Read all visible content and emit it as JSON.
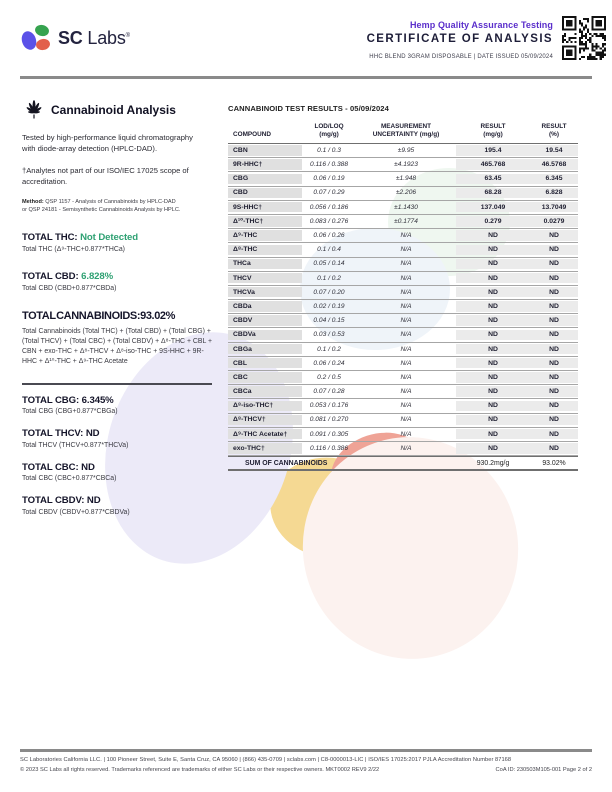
{
  "colors": {
    "accent_purple": "#5a2ecb",
    "value_green": "#2fa173",
    "logo_purple": "#5b51e8",
    "logo_green": "#36a34f",
    "logo_red": "#e2604c"
  },
  "header": {
    "brand_sc": "SC",
    "brand_labs": "Labs",
    "brand_reg": "®",
    "program": "Hemp Quality Assurance Testing",
    "title": "CERTIFICATE OF ANALYSIS",
    "sample_line": "HHC BLEND 3GRAM DISPOSABLE | DATE ISSUED 05/09/2024"
  },
  "left": {
    "section_title": "Cannabinoid Analysis",
    "intro": "Tested by high-performance liquid chromatography with diode-array detection (HPLC-DAD).",
    "scope_note": "†Analytes not part of our ISO/IEC 17025 scope of accreditation.",
    "method_label": "Method:",
    "method_text": " QSP 1157 - Analysis of Cannabinoids by HPLC-DAD or QSP 24181 - Semisynthetic Cannabinoids Analysis by HPLC.",
    "totals_primary": [
      {
        "label": "TOTAL THC:",
        "value": "Not Detected",
        "color": "#2fa173",
        "sub": "Total THC (Δ⁹-THC+0.877*THCa)"
      },
      {
        "label": "TOTAL CBD:",
        "value": "6.828%",
        "color": "#2fa173",
        "sub": "Total CBD (CBD+0.877*CBDa)"
      }
    ],
    "total_cannabinoids": {
      "label": "TOTAL CANNABINOIDS:",
      "value": "93.02%",
      "formula": "Total Cannabinoids (Total THC) + (Total CBD) + (Total CBG) + (Total THCV) + (Total CBC) + (Total CBDV) + Δ⁸-THC + CBL + CBN + exo-THC + Δ⁸-THCV + Δ⁸-iso-THC + 9S-HHC + 9R-HHC + Δ¹⁰-THC + Δ⁹-THC Acetate"
    },
    "totals_secondary": [
      {
        "label": "TOTAL CBG:",
        "value": "6.345%",
        "sub": "Total CBG (CBG+0.877*CBGa)"
      },
      {
        "label": "TOTAL THCV:",
        "value": "ND",
        "sub": "Total THCV (THCV+0.877*THCVa)"
      },
      {
        "label": "TOTAL CBC:",
        "value": "ND",
        "sub": "Total CBC (CBC+0.877*CBCa)"
      },
      {
        "label": "TOTAL CBDV:",
        "value": "ND",
        "sub": "Total CBDV (CBDV+0.877*CBDVa)"
      }
    ]
  },
  "results": {
    "title": "CANNABINOID TEST RESULTS - 05/09/2024",
    "columns": {
      "compound": "COMPOUND",
      "lod_loq_1": "LOD/LOQ",
      "lod_loq_2": "(mg/g)",
      "uncertainty_1": "MEASUREMENT",
      "uncertainty_2": "UNCERTAINTY (mg/g)",
      "result_mg_1": "RESULT",
      "result_mg_2": "(mg/g)",
      "result_pct_1": "RESULT",
      "result_pct_2": "(%)"
    },
    "rows": [
      {
        "compound": "CBN",
        "lod_loq": "0.1 / 0.3",
        "uncertainty": "±9.95",
        "result_mg": "195.4",
        "result_pct": "19.54"
      },
      {
        "compound": "9R-HHC†",
        "lod_loq": "0.116 / 0.388",
        "uncertainty": "±4.1923",
        "result_mg": "465.768",
        "result_pct": "46.5768"
      },
      {
        "compound": "CBG",
        "lod_loq": "0.06 / 0.19",
        "uncertainty": "±1.948",
        "result_mg": "63.45",
        "result_pct": "6.345"
      },
      {
        "compound": "CBD",
        "lod_loq": "0.07 / 0.29",
        "uncertainty": "±2.206",
        "result_mg": "68.28",
        "result_pct": "6.828"
      },
      {
        "compound": "9S-HHC†",
        "lod_loq": "0.056 / 0.186",
        "uncertainty": "±1.1430",
        "result_mg": "137.049",
        "result_pct": "13.7049"
      },
      {
        "compound": "Δ¹⁰-THC†",
        "lod_loq": "0.083 / 0.276",
        "uncertainty": "±0.1774",
        "result_mg": "0.279",
        "result_pct": "0.0279"
      },
      {
        "compound": "Δ⁹-THC",
        "lod_loq": "0.06 / 0.26",
        "uncertainty": "N/A",
        "result_mg": "ND",
        "result_pct": "ND"
      },
      {
        "compound": "Δ⁸-THC",
        "lod_loq": "0.1 / 0.4",
        "uncertainty": "N/A",
        "result_mg": "ND",
        "result_pct": "ND"
      },
      {
        "compound": "THCa",
        "lod_loq": "0.05 / 0.14",
        "uncertainty": "N/A",
        "result_mg": "ND",
        "result_pct": "ND"
      },
      {
        "compound": "THCV",
        "lod_loq": "0.1 / 0.2",
        "uncertainty": "N/A",
        "result_mg": "ND",
        "result_pct": "ND"
      },
      {
        "compound": "THCVa",
        "lod_loq": "0.07 / 0.20",
        "uncertainty": "N/A",
        "result_mg": "ND",
        "result_pct": "ND"
      },
      {
        "compound": "CBDa",
        "lod_loq": "0.02 / 0.19",
        "uncertainty": "N/A",
        "result_mg": "ND",
        "result_pct": "ND"
      },
      {
        "compound": "CBDV",
        "lod_loq": "0.04 / 0.15",
        "uncertainty": "N/A",
        "result_mg": "ND",
        "result_pct": "ND"
      },
      {
        "compound": "CBDVa",
        "lod_loq": "0.03 / 0.53",
        "uncertainty": "N/A",
        "result_mg": "ND",
        "result_pct": "ND"
      },
      {
        "compound": "CBGa",
        "lod_loq": "0.1 / 0.2",
        "uncertainty": "N/A",
        "result_mg": "ND",
        "result_pct": "ND"
      },
      {
        "compound": "CBL",
        "lod_loq": "0.06 / 0.24",
        "uncertainty": "N/A",
        "result_mg": "ND",
        "result_pct": "ND"
      },
      {
        "compound": "CBC",
        "lod_loq": "0.2 / 0.5",
        "uncertainty": "N/A",
        "result_mg": "ND",
        "result_pct": "ND"
      },
      {
        "compound": "CBCa",
        "lod_loq": "0.07 / 0.28",
        "uncertainty": "N/A",
        "result_mg": "ND",
        "result_pct": "ND"
      },
      {
        "compound": "Δ⁸-iso-THC†",
        "lod_loq": "0.053 / 0.176",
        "uncertainty": "N/A",
        "result_mg": "ND",
        "result_pct": "ND"
      },
      {
        "compound": "Δ⁸-THCV†",
        "lod_loq": "0.081 / 0.270",
        "uncertainty": "N/A",
        "result_mg": "ND",
        "result_pct": "ND"
      },
      {
        "compound": "Δ⁹-THC Acetate†",
        "lod_loq": "0.091 / 0.305",
        "uncertainty": "N/A",
        "result_mg": "ND",
        "result_pct": "ND"
      },
      {
        "compound": "exo-THC†",
        "lod_loq": "0.116 / 0.386",
        "uncertainty": "N/A",
        "result_mg": "ND",
        "result_pct": "ND"
      }
    ],
    "sum_row": {
      "label": "SUM OF CANNABINOIDS",
      "result_mg": "930.2mg/g",
      "result_pct": "93.02%"
    }
  },
  "footer": {
    "line1": "SC Laboratories California LLC. | 100 Pioneer Street, Suite E, Santa Cruz, CA 95060 | (866) 435-0709 | sclabs.com | C8-0000013-LIC | ISO/IES 17025:2017 PJLA Accreditation Number 87168",
    "line2_left": "© 2023 SC Labs all rights reserved. Trademarks referenced are trademarks of either SC Labs or their respective owners. MKT0002 REV9 2/22",
    "line2_right": "CoA ID: 230503M105-001  Page 2 of 2"
  }
}
